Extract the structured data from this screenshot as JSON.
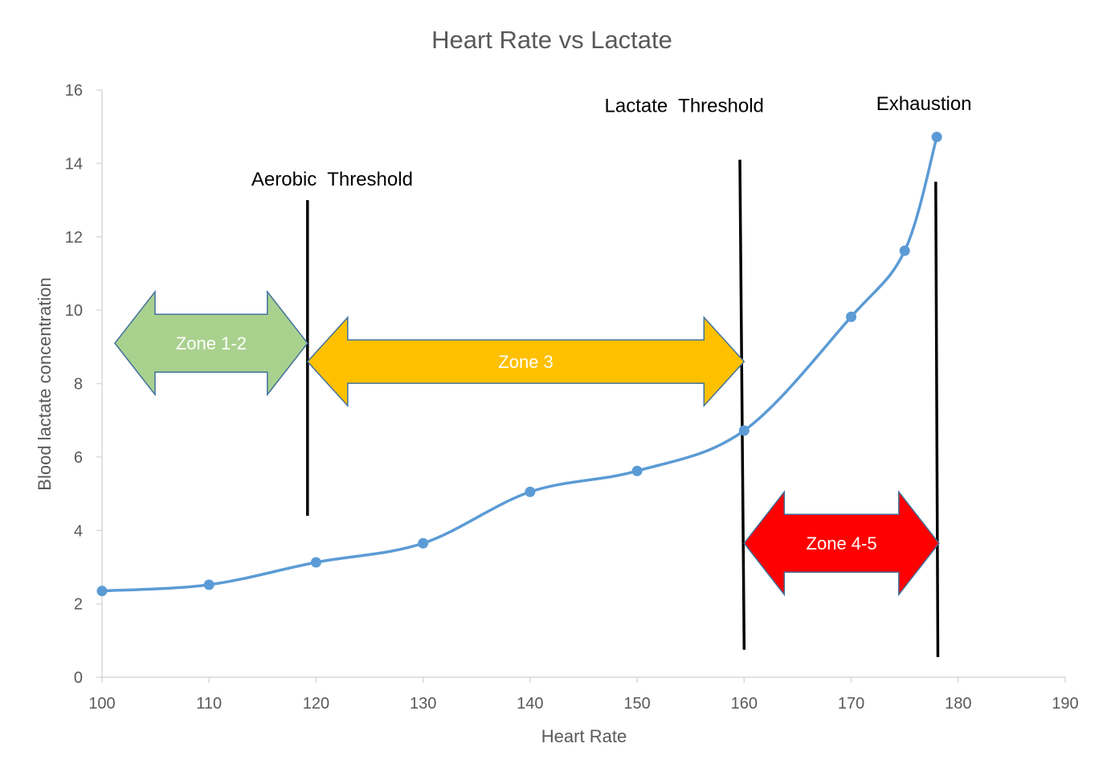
{
  "chart_data": {
    "type": "line",
    "title": "Heart Rate vs Lactate",
    "xlabel": "Heart Rate",
    "ylabel": "Blood lactate concentration",
    "xlim": [
      100,
      190
    ],
    "ylim": [
      0,
      16
    ],
    "x_ticks": [
      100,
      110,
      120,
      130,
      140,
      150,
      160,
      170,
      180,
      190
    ],
    "y_ticks": [
      0,
      2,
      4,
      6,
      8,
      10,
      12,
      14,
      16
    ],
    "grid": false,
    "smooth": true,
    "series": [
      {
        "color": "#5B9BD5",
        "points": [
          {
            "x": 100,
            "y": 2.35
          },
          {
            "x": 110,
            "y": 2.52
          },
          {
            "x": 120,
            "y": 3.13
          },
          {
            "x": 130,
            "y": 3.65
          },
          {
            "x": 140,
            "y": 5.05
          },
          {
            "x": 150,
            "y": 5.62
          },
          {
            "x": 160,
            "y": 6.72
          },
          {
            "x": 170,
            "y": 9.82
          },
          {
            "x": 175,
            "y": 11.62
          },
          {
            "x": 178,
            "y": 14.72
          }
        ]
      }
    ],
    "thresholds": [
      {
        "label": "Aerobic  Threshold",
        "x1": 119.2,
        "y1": 4.4,
        "x2": 119.2,
        "y2": 13.0,
        "label_x": 121.5,
        "label_y": 13.4
      },
      {
        "label": "Lactate  Threshold",
        "x1": 159.6,
        "y1": 14.1,
        "x2": 160.0,
        "y2": 0.75,
        "label_x": 154.4,
        "label_y": 15.4
      },
      {
        "label": "Exhaustion",
        "x1": 177.9,
        "y1": 13.5,
        "x2": 178.1,
        "y2": 0.55,
        "label_x": 176.8,
        "label_y": 15.45
      }
    ],
    "zones": [
      {
        "label": "Zone  1-2",
        "x_from": 101.2,
        "x_to": 119.2,
        "y_center": 9.1,
        "color": "#A9D18E"
      },
      {
        "label": "Zone 3",
        "x_from": 119.2,
        "x_to": 160.0,
        "y_center": 8.6,
        "color": "#FFC000"
      },
      {
        "label": "Zone 4-5",
        "x_from": 160.0,
        "x_to": 178.2,
        "y_center": 3.65,
        "color": "#FF0000"
      }
    ]
  }
}
